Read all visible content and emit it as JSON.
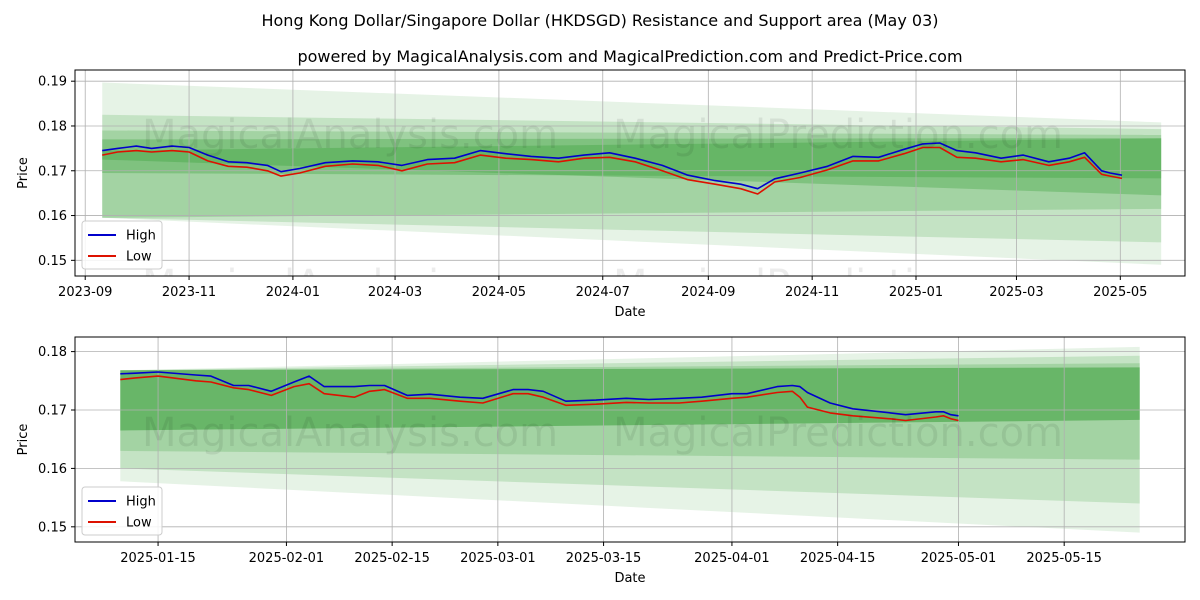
{
  "title": "Hong Kong Dollar/Singapore Dollar (HKDSGD) Resistance and Support area (May 03)",
  "subtitle": "powered by MagicalAnalysis.com and MagicalPrediction.com and Predict-Price.com",
  "watermarks": [
    "MagicalAnalysis.com",
    "MagicalPrediction.com"
  ],
  "colors": {
    "high": "#0000cc",
    "low": "#dd1100",
    "band": "#2e9a2e"
  },
  "chart_data": [
    {
      "type": "line",
      "xlabel": "Date",
      "ylabel": "Price",
      "xlim": [
        "2023-08-26",
        "2025-06-08"
      ],
      "ylim": [
        0.1465,
        0.1925
      ],
      "x_ticks": [
        "2023-09",
        "2023-11",
        "2024-01",
        "2024-03",
        "2024-05",
        "2024-07",
        "2024-09",
        "2024-11",
        "2025-01",
        "2025-03",
        "2025-05"
      ],
      "y_ticks": [
        0.15,
        0.16,
        0.17,
        0.18,
        0.19
      ],
      "grid": true,
      "legend": "lower-left",
      "x": [
        "2023-09-11",
        "2023-09-20",
        "2023-10-01",
        "2023-10-10",
        "2023-10-22",
        "2023-11-01",
        "2023-11-12",
        "2023-11-24",
        "2023-12-05",
        "2023-12-17",
        "2023-12-25",
        "2024-01-05",
        "2024-01-20",
        "2024-02-05",
        "2024-02-20",
        "2024-03-05",
        "2024-03-20",
        "2024-04-05",
        "2024-04-20",
        "2024-05-05",
        "2024-05-20",
        "2024-06-05",
        "2024-06-20",
        "2024-07-05",
        "2024-07-20",
        "2024-08-05",
        "2024-08-20",
        "2024-09-05",
        "2024-09-20",
        "2024-09-30",
        "2024-10-10",
        "2024-10-25",
        "2024-11-10",
        "2024-11-25",
        "2024-12-10",
        "2024-12-25",
        "2025-01-05",
        "2025-01-15",
        "2025-01-25",
        "2025-02-05",
        "2025-02-20",
        "2025-03-05",
        "2025-03-20",
        "2025-04-01",
        "2025-04-10",
        "2025-04-20",
        "2025-04-25",
        "2025-05-02"
      ],
      "series": [
        {
          "name": "High",
          "values": [
            0.1745,
            0.175,
            0.1755,
            0.175,
            0.1755,
            0.1752,
            0.1735,
            0.172,
            0.1718,
            0.1712,
            0.1698,
            0.1705,
            0.1718,
            0.1722,
            0.172,
            0.1712,
            0.1725,
            0.1728,
            0.1745,
            0.1738,
            0.1732,
            0.1728,
            0.1735,
            0.174,
            0.1728,
            0.1712,
            0.169,
            0.1678,
            0.167,
            0.166,
            0.1682,
            0.1695,
            0.171,
            0.1732,
            0.173,
            0.1748,
            0.176,
            0.1762,
            0.1745,
            0.174,
            0.1728,
            0.1735,
            0.172,
            0.1728,
            0.174,
            0.17,
            0.1695,
            0.169
          ]
        },
        {
          "name": "Low",
          "values": [
            0.1735,
            0.1742,
            0.1745,
            0.1742,
            0.1745,
            0.1742,
            0.1722,
            0.171,
            0.1708,
            0.17,
            0.1688,
            0.1695,
            0.171,
            0.1715,
            0.1712,
            0.17,
            0.1715,
            0.1718,
            0.1735,
            0.1728,
            0.1725,
            0.172,
            0.1728,
            0.173,
            0.172,
            0.17,
            0.168,
            0.167,
            0.166,
            0.1648,
            0.1675,
            0.1685,
            0.1702,
            0.1722,
            0.1722,
            0.1738,
            0.1752,
            0.1752,
            0.173,
            0.1728,
            0.172,
            0.1725,
            0.1712,
            0.172,
            0.173,
            0.1692,
            0.1688,
            0.1683
          ]
        }
      ],
      "bands": [
        {
          "x": [
            "2023-09-11",
            "2025-05-25"
          ],
          "upper": [
            0.1897,
            0.1808
          ],
          "lower": [
            0.1595,
            0.149
          ],
          "opacity": 0.12
        },
        {
          "x": [
            "2023-09-11",
            "2025-05-25"
          ],
          "upper": [
            0.1825,
            0.1793
          ],
          "lower": [
            0.1595,
            0.154
          ],
          "opacity": 0.18
        },
        {
          "x": [
            "2023-09-11",
            "2025-05-25"
          ],
          "upper": [
            0.179,
            0.178
          ],
          "lower": [
            0.1595,
            0.1615
          ],
          "opacity": 0.22
        },
        {
          "x": [
            "2023-09-11",
            "2025-05-25"
          ],
          "upper": [
            0.177,
            0.1773
          ],
          "lower": [
            0.1695,
            0.1683
          ],
          "opacity": 0.3
        },
        {
          "x": [
            "2023-09-11",
            "2025-05-25"
          ],
          "upper": [
            0.1745,
            0.1772
          ],
          "lower": [
            0.1725,
            0.1645
          ],
          "opacity": 0.3
        }
      ]
    },
    {
      "type": "line",
      "xlabel": "Date",
      "ylabel": "Price",
      "xlim": [
        "2025-01-04",
        "2025-05-31"
      ],
      "ylim": [
        0.1474,
        0.1825
      ],
      "x_ticks": [
        "2025-01-15",
        "2025-02-01",
        "2025-02-15",
        "2025-03-01",
        "2025-03-15",
        "2025-04-01",
        "2025-04-15",
        "2025-05-01",
        "2025-05-15"
      ],
      "y_ticks": [
        0.15,
        0.16,
        0.17,
        0.18
      ],
      "grid": true,
      "legend": "lower-left",
      "x": [
        "2025-01-10",
        "2025-01-12",
        "2025-01-15",
        "2025-01-20",
        "2025-01-22",
        "2025-01-25",
        "2025-01-27",
        "2025-01-30",
        "2025-02-02",
        "2025-02-04",
        "2025-02-06",
        "2025-02-10",
        "2025-02-12",
        "2025-02-14",
        "2025-02-17",
        "2025-02-20",
        "2025-02-24",
        "2025-02-27",
        "2025-03-03",
        "2025-03-05",
        "2025-03-07",
        "2025-03-10",
        "2025-03-14",
        "2025-03-18",
        "2025-03-21",
        "2025-03-25",
        "2025-03-28",
        "2025-04-01",
        "2025-04-03",
        "2025-04-07",
        "2025-04-09",
        "2025-04-10",
        "2025-04-11",
        "2025-04-14",
        "2025-04-17",
        "2025-04-22",
        "2025-04-24",
        "2025-04-28",
        "2025-04-29",
        "2025-04-30",
        "2025-05-01"
      ],
      "series": [
        {
          "name": "High",
          "values": [
            0.1762,
            0.1763,
            0.1765,
            0.176,
            0.1758,
            0.1742,
            0.1742,
            0.1732,
            0.1748,
            0.1758,
            0.174,
            0.174,
            0.1742,
            0.1742,
            0.1725,
            0.1727,
            0.1722,
            0.172,
            0.1735,
            0.1735,
            0.1732,
            0.1715,
            0.1717,
            0.172,
            0.1718,
            0.172,
            0.1722,
            0.1728,
            0.1728,
            0.174,
            0.1742,
            0.174,
            0.173,
            0.1712,
            0.1702,
            0.1695,
            0.1692,
            0.1697,
            0.1697,
            0.1692,
            0.169
          ]
        },
        {
          "name": "Low",
          "values": [
            0.1752,
            0.1755,
            0.1758,
            0.175,
            0.1748,
            0.1738,
            0.1735,
            0.1725,
            0.174,
            0.1745,
            0.1728,
            0.1722,
            0.1732,
            0.1735,
            0.172,
            0.172,
            0.1715,
            0.1712,
            0.1728,
            0.1728,
            0.1722,
            0.1708,
            0.171,
            0.1713,
            0.1712,
            0.1712,
            0.1715,
            0.172,
            0.1722,
            0.173,
            0.1732,
            0.1722,
            0.1705,
            0.1695,
            0.169,
            0.1685,
            0.1682,
            0.1688,
            0.169,
            0.1685,
            0.1682
          ]
        }
      ],
      "bands": [
        {
          "x": [
            "2025-01-10",
            "2025-05-25"
          ],
          "upper": [
            0.1768,
            0.1808
          ],
          "lower": [
            0.1578,
            0.149
          ],
          "opacity": 0.12
        },
        {
          "x": [
            "2025-01-10",
            "2025-05-25"
          ],
          "upper": [
            0.1768,
            0.1793
          ],
          "lower": [
            0.16,
            0.154
          ],
          "opacity": 0.18
        },
        {
          "x": [
            "2025-01-10",
            "2025-05-25"
          ],
          "upper": [
            0.1768,
            0.178
          ],
          "lower": [
            0.163,
            0.1615
          ],
          "opacity": 0.22
        },
        {
          "x": [
            "2025-01-10",
            "2025-05-25"
          ],
          "upper": [
            0.1768,
            0.1773
          ],
          "lower": [
            0.1665,
            0.1683
          ],
          "opacity": 0.5
        }
      ]
    }
  ]
}
